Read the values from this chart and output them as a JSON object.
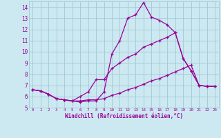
{
  "xlabel": "Windchill (Refroidissement éolien,°C)",
  "background_color": "#cce8f0",
  "grid_color": "#a0c8d8",
  "line_color": "#990099",
  "xlim": [
    -0.5,
    23.5
  ],
  "ylim": [
    5,
    14.5
  ],
  "xticks": [
    0,
    1,
    2,
    3,
    4,
    5,
    6,
    7,
    8,
    9,
    10,
    11,
    12,
    13,
    14,
    15,
    16,
    17,
    18,
    19,
    20,
    21,
    22,
    23
  ],
  "yticks": [
    5,
    6,
    7,
    8,
    9,
    10,
    11,
    12,
    13,
    14
  ],
  "line1_x": [
    0,
    1,
    2,
    3,
    4,
    5,
    6,
    7,
    8,
    9,
    10,
    11,
    12,
    13,
    14,
    15,
    16,
    17,
    18,
    19,
    20,
    21,
    22,
    23
  ],
  "line1_y": [
    6.6,
    6.5,
    6.2,
    5.8,
    5.7,
    5.6,
    5.5,
    5.6,
    5.6,
    6.4,
    9.8,
    11.0,
    13.0,
    13.3,
    14.4,
    13.1,
    12.8,
    12.4,
    11.7,
    9.4,
    8.3,
    7.0,
    6.9,
    6.9
  ],
  "line2_x": [
    0,
    1,
    2,
    3,
    4,
    5,
    6,
    7,
    8,
    9,
    10,
    11,
    12,
    13,
    14,
    15,
    16,
    17,
    18,
    19,
    20,
    21,
    22,
    23
  ],
  "line2_y": [
    6.6,
    6.5,
    6.2,
    5.8,
    5.7,
    5.6,
    5.6,
    5.7,
    5.7,
    5.8,
    6.1,
    6.3,
    6.6,
    6.8,
    7.1,
    7.4,
    7.6,
    7.9,
    8.2,
    8.5,
    8.8,
    7.0,
    6.9,
    6.9
  ],
  "line3_x": [
    0,
    1,
    2,
    3,
    4,
    5,
    6,
    7,
    8,
    9,
    10,
    11,
    12,
    13,
    14,
    15,
    16,
    17,
    18,
    19,
    20,
    21,
    22,
    23
  ],
  "line3_y": [
    6.6,
    6.5,
    6.2,
    5.8,
    5.7,
    5.6,
    6.0,
    6.4,
    7.5,
    7.5,
    8.5,
    9.0,
    9.5,
    9.8,
    10.4,
    10.7,
    11.0,
    11.3,
    11.7,
    9.4,
    8.3,
    7.0,
    6.9,
    6.9
  ]
}
